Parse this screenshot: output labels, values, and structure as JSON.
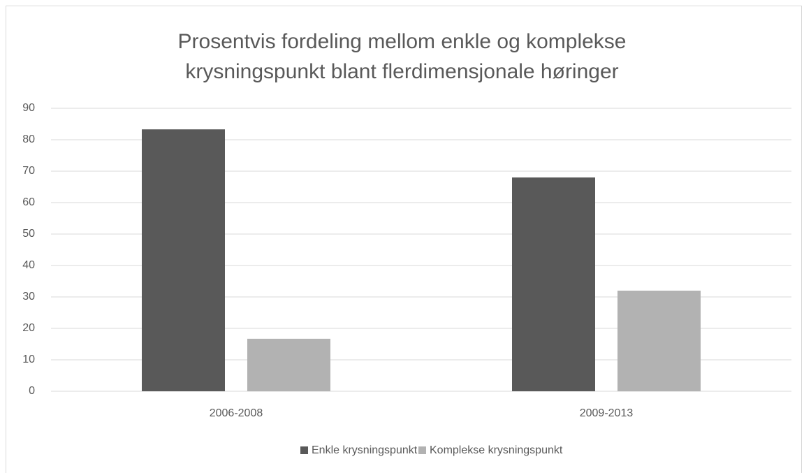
{
  "chart_data": {
    "type": "bar",
    "title": "Prosentvis fordeling mellom enkle og komplekse krysningspunkt blant flerdimensjonale høringer",
    "categories": [
      "2006-2008",
      "2009-2013"
    ],
    "series": [
      {
        "name": "Enkle krysningspunkt",
        "color": "#595959",
        "values": [
          83.3,
          68
        ]
      },
      {
        "name": "Komplekse krysningspunkt",
        "color": "#b2b2b2",
        "values": [
          16.7,
          32
        ]
      }
    ],
    "ylim": [
      0,
      90
    ],
    "yticks": [
      0,
      10,
      20,
      30,
      40,
      50,
      60,
      70,
      80,
      90
    ],
    "grid": true,
    "legend": "bottom"
  }
}
